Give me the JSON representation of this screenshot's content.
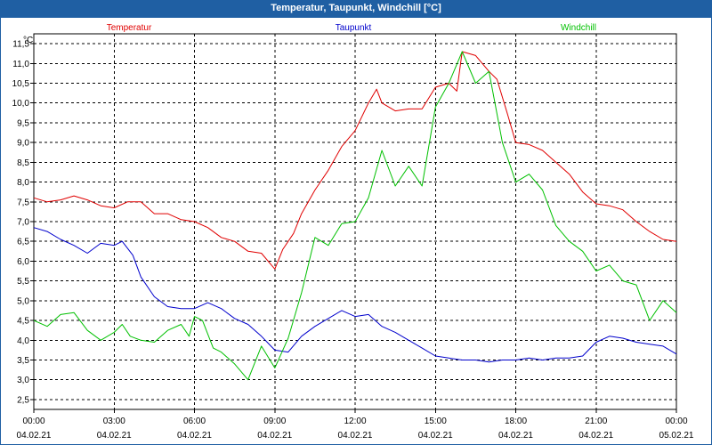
{
  "window": {
    "title": "Temperatur, Taupunkt, Windchill [°C]"
  },
  "chart_data": {
    "type": "line",
    "title": "Temperatur, Taupunkt, Windchill [°C]",
    "ylabel": "°C",
    "xlabel": "",
    "ylim": [
      2.5,
      11.5
    ],
    "y_ticks": [
      "2,5",
      "3,0",
      "3,5",
      "4,0",
      "4,5",
      "5,0",
      "5,5",
      "6,0",
      "6,5",
      "7,0",
      "7,5",
      "8,0",
      "8,5",
      "9,0",
      "9,5",
      "10,0",
      "10,5",
      "11,0",
      "11,5"
    ],
    "x_ticks": [
      {
        "time": "00:00",
        "date": "04.02.21"
      },
      {
        "time": "03:00",
        "date": "04.02.21"
      },
      {
        "time": "06:00",
        "date": "04.02.21"
      },
      {
        "time": "09:00",
        "date": "04.02.21"
      },
      {
        "time": "12:00",
        "date": "04.02.21"
      },
      {
        "time": "15:00",
        "date": "04.02.21"
      },
      {
        "time": "18:00",
        "date": "04.02.21"
      },
      {
        "time": "21:00",
        "date": "04.02.21"
      },
      {
        "time": "00:00",
        "date": "05.02.21"
      }
    ],
    "x_unit": "hours since 04.02.21 00:00",
    "grid": true,
    "legend": "top",
    "series": [
      {
        "name": "Temperatur",
        "color": "#e00000",
        "points": [
          [
            0,
            7.6
          ],
          [
            0.5,
            7.5
          ],
          [
            1,
            7.55
          ],
          [
            1.5,
            7.65
          ],
          [
            2,
            7.55
          ],
          [
            2.5,
            7.4
          ],
          [
            3,
            7.35
          ],
          [
            3.5,
            7.5
          ],
          [
            4,
            7.5
          ],
          [
            4.5,
            7.2
          ],
          [
            5,
            7.2
          ],
          [
            5.5,
            7.05
          ],
          [
            6,
            7.0
          ],
          [
            6.5,
            6.85
          ],
          [
            7,
            6.6
          ],
          [
            7.5,
            6.5
          ],
          [
            8,
            6.25
          ],
          [
            8.5,
            6.2
          ],
          [
            9,
            5.8
          ],
          [
            9.3,
            6.3
          ],
          [
            9.7,
            6.7
          ],
          [
            10,
            7.2
          ],
          [
            10.5,
            7.8
          ],
          [
            11,
            8.3
          ],
          [
            11.5,
            8.9
          ],
          [
            12,
            9.3
          ],
          [
            12.5,
            10.0
          ],
          [
            12.8,
            10.35
          ],
          [
            13,
            10.0
          ],
          [
            13.5,
            9.8
          ],
          [
            14,
            9.85
          ],
          [
            14.5,
            9.85
          ],
          [
            15,
            10.4
          ],
          [
            15.5,
            10.5
          ],
          [
            15.8,
            10.3
          ],
          [
            16,
            11.3
          ],
          [
            16.5,
            11.2
          ],
          [
            17,
            10.8
          ],
          [
            17.3,
            10.6
          ],
          [
            17.7,
            9.7
          ],
          [
            18,
            9.0
          ],
          [
            18.5,
            8.95
          ],
          [
            19,
            8.8
          ],
          [
            19.5,
            8.5
          ],
          [
            20,
            8.2
          ],
          [
            20.5,
            7.75
          ],
          [
            21,
            7.45
          ],
          [
            21.5,
            7.4
          ],
          [
            22,
            7.3
          ],
          [
            22.5,
            7.0
          ],
          [
            23,
            6.75
          ],
          [
            23.5,
            6.55
          ],
          [
            24,
            6.5
          ]
        ]
      },
      {
        "name": "Taupunkt",
        "color": "#0000cc",
        "points": [
          [
            0,
            6.85
          ],
          [
            0.5,
            6.75
          ],
          [
            1,
            6.55
          ],
          [
            1.5,
            6.4
          ],
          [
            2,
            6.2
          ],
          [
            2.5,
            6.45
          ],
          [
            3,
            6.4
          ],
          [
            3.3,
            6.5
          ],
          [
            3.7,
            6.15
          ],
          [
            4,
            5.6
          ],
          [
            4.5,
            5.1
          ],
          [
            5,
            4.85
          ],
          [
            5.5,
            4.8
          ],
          [
            6,
            4.8
          ],
          [
            6.5,
            4.95
          ],
          [
            7,
            4.8
          ],
          [
            7.5,
            4.55
          ],
          [
            8,
            4.4
          ],
          [
            8.5,
            4.1
          ],
          [
            9,
            3.75
          ],
          [
            9.5,
            3.7
          ],
          [
            10,
            4.1
          ],
          [
            10.5,
            4.35
          ],
          [
            11,
            4.55
          ],
          [
            11.5,
            4.75
          ],
          [
            12,
            4.6
          ],
          [
            12.5,
            4.65
          ],
          [
            13,
            4.35
          ],
          [
            13.5,
            4.2
          ],
          [
            14,
            4.0
          ],
          [
            14.5,
            3.8
          ],
          [
            15,
            3.6
          ],
          [
            15.5,
            3.55
          ],
          [
            16,
            3.5
          ],
          [
            16.5,
            3.5
          ],
          [
            17,
            3.45
          ],
          [
            17.5,
            3.5
          ],
          [
            18,
            3.5
          ],
          [
            18.5,
            3.55
          ],
          [
            19,
            3.5
          ],
          [
            19.5,
            3.55
          ],
          [
            20,
            3.55
          ],
          [
            20.5,
            3.6
          ],
          [
            21,
            3.95
          ],
          [
            21.5,
            4.1
          ],
          [
            22,
            4.05
          ],
          [
            22.5,
            3.95
          ],
          [
            23,
            3.9
          ],
          [
            23.5,
            3.85
          ],
          [
            24,
            3.65
          ]
        ]
      },
      {
        "name": "Windchill",
        "color": "#00c000",
        "points": [
          [
            0,
            4.5
          ],
          [
            0.5,
            4.35
          ],
          [
            1,
            4.65
          ],
          [
            1.5,
            4.7
          ],
          [
            2,
            4.25
          ],
          [
            2.5,
            4.0
          ],
          [
            3,
            4.2
          ],
          [
            3.3,
            4.4
          ],
          [
            3.6,
            4.1
          ],
          [
            4,
            4.0
          ],
          [
            4.5,
            3.95
          ],
          [
            5,
            4.25
          ],
          [
            5.5,
            4.4
          ],
          [
            5.8,
            4.1
          ],
          [
            6,
            4.6
          ],
          [
            6.3,
            4.5
          ],
          [
            6.7,
            3.8
          ],
          [
            7,
            3.7
          ],
          [
            7.5,
            3.4
          ],
          [
            8,
            3.0
          ],
          [
            8.5,
            3.85
          ],
          [
            9,
            3.3
          ],
          [
            9.5,
            4.05
          ],
          [
            10,
            5.2
          ],
          [
            10.5,
            6.6
          ],
          [
            11,
            6.4
          ],
          [
            11.5,
            6.95
          ],
          [
            12,
            7.0
          ],
          [
            12.5,
            7.6
          ],
          [
            13,
            8.8
          ],
          [
            13.5,
            7.9
          ],
          [
            14,
            8.4
          ],
          [
            14.5,
            7.9
          ],
          [
            15,
            9.9
          ],
          [
            15.5,
            10.5
          ],
          [
            16,
            11.3
          ],
          [
            16.5,
            10.5
          ],
          [
            17,
            10.8
          ],
          [
            17.5,
            9.0
          ],
          [
            18,
            8.0
          ],
          [
            18.5,
            8.2
          ],
          [
            19,
            7.8
          ],
          [
            19.5,
            6.9
          ],
          [
            20,
            6.5
          ],
          [
            20.5,
            6.25
          ],
          [
            21,
            5.75
          ],
          [
            21.5,
            5.9
          ],
          [
            22,
            5.5
          ],
          [
            22.5,
            5.4
          ],
          [
            23,
            4.5
          ],
          [
            23.5,
            5.0
          ],
          [
            24,
            4.7
          ]
        ]
      }
    ]
  }
}
